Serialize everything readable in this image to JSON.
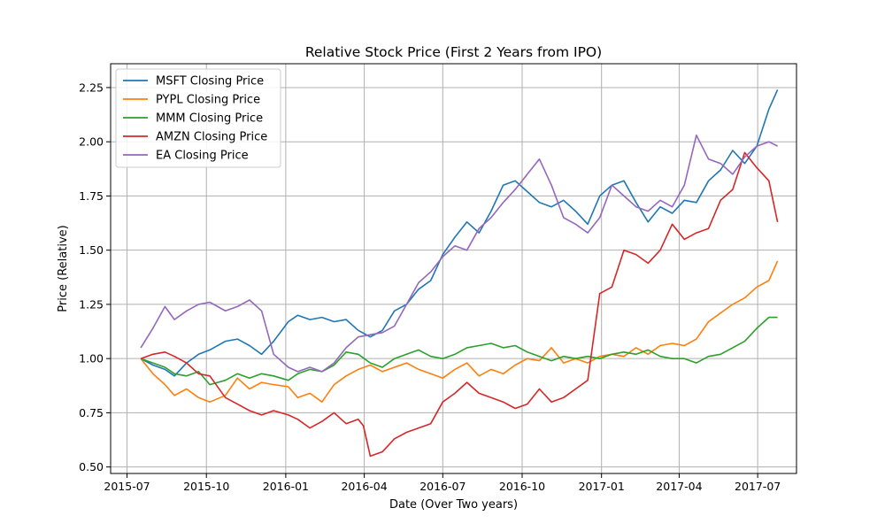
{
  "chart_data": {
    "type": "line",
    "title": "Relative Stock Price (First 2 Years from IPO)",
    "xlabel": "Date (Over Two years)",
    "ylabel": "Price (Relative)",
    "xlim": [
      "2015-06-12",
      "2017-08-15"
    ],
    "ylim": [
      0.47,
      2.36
    ],
    "x_ticks": [
      {
        "date": "2015-07-01",
        "label": "2015-07"
      },
      {
        "date": "2015-10-01",
        "label": "2015-10"
      },
      {
        "date": "2016-01-01",
        "label": "2016-01"
      },
      {
        "date": "2016-04-01",
        "label": "2016-04"
      },
      {
        "date": "2016-07-01",
        "label": "2016-07"
      },
      {
        "date": "2016-10-01",
        "label": "2016-10"
      },
      {
        "date": "2017-01-01",
        "label": "2017-01"
      },
      {
        "date": "2017-04-01",
        "label": "2017-04"
      },
      {
        "date": "2017-07-01",
        "label": "2017-07"
      }
    ],
    "y_ticks": [
      {
        "value": 0.5,
        "label": "0.50"
      },
      {
        "value": 0.75,
        "label": "0.75"
      },
      {
        "value": 1.0,
        "label": "1.00"
      },
      {
        "value": 1.25,
        "label": "1.25"
      },
      {
        "value": 1.5,
        "label": "1.50"
      },
      {
        "value": 1.75,
        "label": "1.75"
      },
      {
        "value": 2.0,
        "label": "2.00"
      },
      {
        "value": 2.25,
        "label": "2.25"
      }
    ],
    "grid": true,
    "legend_position": "top-left",
    "series": [
      {
        "name": "MSFT Closing Price",
        "color": "#1f77b4",
        "x": [
          "2015-07-17",
          "2015-07-31",
          "2015-08-14",
          "2015-08-25",
          "2015-09-08",
          "2015-09-22",
          "2015-10-05",
          "2015-10-23",
          "2015-11-06",
          "2015-11-20",
          "2015-12-04",
          "2015-12-18",
          "2016-01-04",
          "2016-01-15",
          "2016-01-29",
          "2016-02-12",
          "2016-02-26",
          "2016-03-11",
          "2016-03-25",
          "2016-04-08",
          "2016-04-22",
          "2016-05-06",
          "2016-05-20",
          "2016-06-03",
          "2016-06-17",
          "2016-07-01",
          "2016-07-15",
          "2016-07-29",
          "2016-08-12",
          "2016-08-26",
          "2016-09-09",
          "2016-09-23",
          "2016-10-07",
          "2016-10-21",
          "2016-11-04",
          "2016-11-18",
          "2016-12-02",
          "2016-12-16",
          "2016-12-30",
          "2017-01-13",
          "2017-01-27",
          "2017-02-10",
          "2017-02-24",
          "2017-03-10",
          "2017-03-24",
          "2017-04-07",
          "2017-04-21",
          "2017-05-05",
          "2017-05-19",
          "2017-06-02",
          "2017-06-16",
          "2017-06-30",
          "2017-07-14",
          "2017-07-24"
        ],
        "y": [
          1.0,
          0.97,
          0.95,
          0.92,
          0.98,
          1.02,
          1.04,
          1.08,
          1.09,
          1.06,
          1.02,
          1.08,
          1.17,
          1.2,
          1.18,
          1.19,
          1.17,
          1.18,
          1.13,
          1.1,
          1.13,
          1.22,
          1.25,
          1.32,
          1.36,
          1.48,
          1.56,
          1.63,
          1.58,
          1.68,
          1.8,
          1.82,
          1.77,
          1.72,
          1.7,
          1.73,
          1.68,
          1.62,
          1.75,
          1.8,
          1.82,
          1.72,
          1.63,
          1.7,
          1.67,
          1.73,
          1.72,
          1.82,
          1.87,
          1.96,
          1.9,
          1.98,
          2.15,
          2.24
        ]
      },
      {
        "name": "PYPL Closing Price",
        "color": "#ff7f0e",
        "x": [
          "2015-07-17",
          "2015-07-31",
          "2015-08-14",
          "2015-08-25",
          "2015-09-08",
          "2015-09-22",
          "2015-10-05",
          "2015-10-23",
          "2015-11-06",
          "2015-11-20",
          "2015-12-04",
          "2015-12-18",
          "2016-01-04",
          "2016-01-15",
          "2016-01-29",
          "2016-02-12",
          "2016-02-26",
          "2016-03-11",
          "2016-03-25",
          "2016-04-08",
          "2016-04-22",
          "2016-05-06",
          "2016-05-20",
          "2016-06-03",
          "2016-06-17",
          "2016-07-01",
          "2016-07-15",
          "2016-07-29",
          "2016-08-12",
          "2016-08-26",
          "2016-09-09",
          "2016-09-23",
          "2016-10-07",
          "2016-10-21",
          "2016-11-04",
          "2016-11-18",
          "2016-12-02",
          "2016-12-16",
          "2016-12-30",
          "2017-01-13",
          "2017-01-27",
          "2017-02-10",
          "2017-02-24",
          "2017-03-10",
          "2017-03-24",
          "2017-04-07",
          "2017-04-21",
          "2017-05-05",
          "2017-05-19",
          "2017-06-02",
          "2017-06-16",
          "2017-06-30",
          "2017-07-14",
          "2017-07-24"
        ],
        "y": [
          1.0,
          0.93,
          0.88,
          0.83,
          0.86,
          0.82,
          0.8,
          0.83,
          0.91,
          0.86,
          0.89,
          0.88,
          0.87,
          0.82,
          0.84,
          0.8,
          0.88,
          0.92,
          0.95,
          0.97,
          0.94,
          0.96,
          0.98,
          0.95,
          0.93,
          0.91,
          0.95,
          0.98,
          0.92,
          0.95,
          0.93,
          0.97,
          1.0,
          0.99,
          1.05,
          0.98,
          1.0,
          0.98,
          1.01,
          1.02,
          1.01,
          1.05,
          1.02,
          1.06,
          1.07,
          1.06,
          1.09,
          1.17,
          1.21,
          1.25,
          1.28,
          1.33,
          1.36,
          1.45
        ]
      },
      {
        "name": "MMM Closing Price",
        "color": "#2ca02c",
        "x": [
          "2015-07-17",
          "2015-07-31",
          "2015-08-14",
          "2015-08-25",
          "2015-09-08",
          "2015-09-22",
          "2015-10-05",
          "2015-10-23",
          "2015-11-06",
          "2015-11-20",
          "2015-12-04",
          "2015-12-18",
          "2016-01-04",
          "2016-01-15",
          "2016-01-29",
          "2016-02-12",
          "2016-02-26",
          "2016-03-11",
          "2016-03-25",
          "2016-04-08",
          "2016-04-22",
          "2016-05-06",
          "2016-05-20",
          "2016-06-03",
          "2016-06-17",
          "2016-07-01",
          "2016-07-15",
          "2016-07-29",
          "2016-08-12",
          "2016-08-26",
          "2016-09-09",
          "2016-09-23",
          "2016-10-07",
          "2016-10-21",
          "2016-11-04",
          "2016-11-18",
          "2016-12-02",
          "2016-12-16",
          "2016-12-30",
          "2017-01-13",
          "2017-01-27",
          "2017-02-10",
          "2017-02-24",
          "2017-03-10",
          "2017-03-24",
          "2017-04-07",
          "2017-04-21",
          "2017-05-05",
          "2017-05-19",
          "2017-06-02",
          "2017-06-16",
          "2017-06-30",
          "2017-07-14",
          "2017-07-24"
        ],
        "y": [
          1.0,
          0.98,
          0.96,
          0.93,
          0.92,
          0.94,
          0.88,
          0.9,
          0.93,
          0.91,
          0.93,
          0.92,
          0.9,
          0.93,
          0.95,
          0.94,
          0.97,
          1.03,
          1.02,
          0.98,
          0.96,
          1.0,
          1.02,
          1.04,
          1.01,
          1.0,
          1.02,
          1.05,
          1.06,
          1.07,
          1.05,
          1.06,
          1.03,
          1.01,
          0.99,
          1.01,
          1.0,
          1.01,
          1.0,
          1.02,
          1.03,
          1.02,
          1.04,
          1.01,
          1.0,
          1.0,
          0.98,
          1.01,
          1.02,
          1.05,
          1.08,
          1.14,
          1.19,
          1.19
        ]
      },
      {
        "name": "AMZN Closing Price",
        "color": "#d62728",
        "x": [
          "2015-07-17",
          "2015-07-31",
          "2015-08-14",
          "2015-08-25",
          "2015-09-08",
          "2015-09-22",
          "2015-10-05",
          "2015-10-23",
          "2015-11-06",
          "2015-11-20",
          "2015-12-04",
          "2015-12-18",
          "2016-01-04",
          "2016-01-15",
          "2016-01-29",
          "2016-02-12",
          "2016-02-26",
          "2016-03-11",
          "2016-03-25",
          "2016-03-31",
          "2016-04-08",
          "2016-04-22",
          "2016-05-06",
          "2016-05-20",
          "2016-06-03",
          "2016-06-17",
          "2016-07-01",
          "2016-07-15",
          "2016-07-29",
          "2016-08-12",
          "2016-08-26",
          "2016-09-09",
          "2016-09-23",
          "2016-10-07",
          "2016-10-21",
          "2016-11-04",
          "2016-11-18",
          "2016-12-02",
          "2016-12-16",
          "2016-12-30",
          "2017-01-13",
          "2017-01-27",
          "2017-02-10",
          "2017-02-24",
          "2017-03-10",
          "2017-03-24",
          "2017-04-07",
          "2017-04-21",
          "2017-05-05",
          "2017-05-19",
          "2017-06-02",
          "2017-06-16",
          "2017-06-30",
          "2017-07-14",
          "2017-07-24"
        ],
        "y": [
          1.0,
          1.02,
          1.03,
          1.01,
          0.98,
          0.93,
          0.92,
          0.82,
          0.79,
          0.76,
          0.74,
          0.76,
          0.74,
          0.72,
          0.68,
          0.71,
          0.75,
          0.7,
          0.72,
          0.69,
          0.55,
          0.57,
          0.63,
          0.66,
          0.68,
          0.7,
          0.8,
          0.84,
          0.89,
          0.84,
          0.82,
          0.8,
          0.77,
          0.79,
          0.86,
          0.8,
          0.82,
          0.86,
          0.9,
          1.3,
          1.33,
          1.5,
          1.48,
          1.44,
          1.5,
          1.62,
          1.55,
          1.58,
          1.6,
          1.73,
          1.78,
          1.95,
          1.88,
          1.82,
          1.63
        ]
      },
      {
        "name": "EA Closing Price",
        "color": "#9467bd",
        "x": [
          "2015-07-17",
          "2015-07-31",
          "2015-08-14",
          "2015-08-25",
          "2015-09-08",
          "2015-09-22",
          "2015-10-05",
          "2015-10-23",
          "2015-11-06",
          "2015-11-20",
          "2015-12-04",
          "2015-12-18",
          "2016-01-04",
          "2016-01-15",
          "2016-01-29",
          "2016-02-12",
          "2016-02-26",
          "2016-03-11",
          "2016-03-25",
          "2016-04-08",
          "2016-04-22",
          "2016-05-06",
          "2016-05-20",
          "2016-06-03",
          "2016-06-17",
          "2016-07-01",
          "2016-07-15",
          "2016-07-29",
          "2016-08-12",
          "2016-08-26",
          "2016-09-09",
          "2016-09-23",
          "2016-10-07",
          "2016-10-21",
          "2016-11-04",
          "2016-11-18",
          "2016-12-02",
          "2016-12-16",
          "2016-12-30",
          "2017-01-13",
          "2017-01-27",
          "2017-02-10",
          "2017-02-24",
          "2017-03-10",
          "2017-03-24",
          "2017-04-07",
          "2017-04-21",
          "2017-05-05",
          "2017-05-19",
          "2017-06-02",
          "2017-06-16",
          "2017-06-30",
          "2017-07-14",
          "2017-07-24"
        ],
        "y": [
          1.05,
          1.14,
          1.24,
          1.18,
          1.22,
          1.25,
          1.26,
          1.22,
          1.24,
          1.27,
          1.22,
          1.02,
          0.96,
          0.94,
          0.96,
          0.94,
          0.98,
          1.05,
          1.1,
          1.11,
          1.12,
          1.15,
          1.25,
          1.35,
          1.4,
          1.47,
          1.52,
          1.5,
          1.6,
          1.65,
          1.72,
          1.78,
          1.85,
          1.92,
          1.8,
          1.65,
          1.62,
          1.58,
          1.65,
          1.8,
          1.75,
          1.7,
          1.68,
          1.73,
          1.7,
          1.8,
          2.03,
          1.92,
          1.9,
          1.85,
          1.93,
          1.98,
          2.0,
          1.98
        ]
      }
    ]
  }
}
